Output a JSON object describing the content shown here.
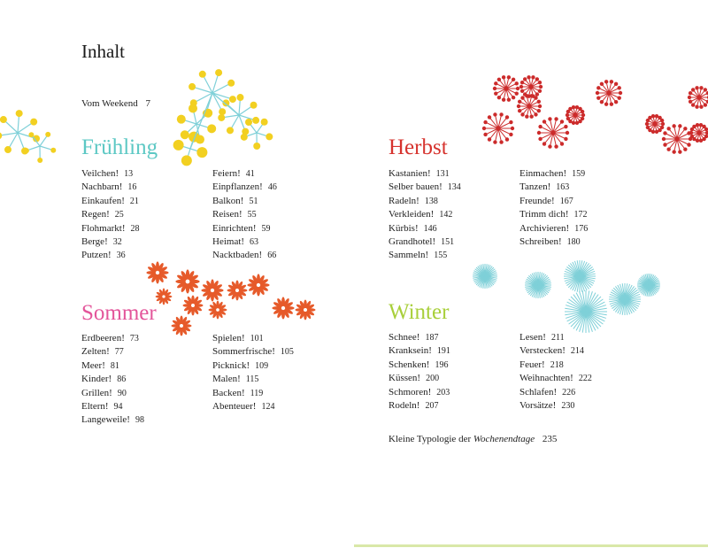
{
  "title": "Inhalt",
  "intro": {
    "label": "Vom Weekend",
    "page": "7"
  },
  "colors": {
    "fruehling": "#5cc8c4",
    "sommer": "#e3559a",
    "herbst": "#d6332e",
    "winter": "#a8cf3a",
    "yellow": "#f2d021",
    "teal": "#7fd0d8",
    "orange": "#e65a2a",
    "red": "#cc2b2b"
  },
  "sections": {
    "fruehling": {
      "heading": "Frühling",
      "col1": [
        {
          "t": "Veilchen!",
          "p": "13"
        },
        {
          "t": "Nachbarn!",
          "p": "16"
        },
        {
          "t": "Einkaufen!",
          "p": "21"
        },
        {
          "t": "Regen!",
          "p": "25"
        },
        {
          "t": "Flohmarkt!",
          "p": "28"
        },
        {
          "t": "Berge!",
          "p": "32"
        },
        {
          "t": "Putzen!",
          "p": "36"
        }
      ],
      "col2": [
        {
          "t": "Feiern!",
          "p": "41"
        },
        {
          "t": "Einpflanzen!",
          "p": "46"
        },
        {
          "t": "Balkon!",
          "p": "51"
        },
        {
          "t": "Reisen!",
          "p": "55"
        },
        {
          "t": "Einrichten!",
          "p": "59"
        },
        {
          "t": "Heimat!",
          "p": "63"
        },
        {
          "t": "Nacktbaden!",
          "p": "66"
        }
      ]
    },
    "sommer": {
      "heading": "Sommer",
      "col1": [
        {
          "t": "Erdbeeren!",
          "p": "73"
        },
        {
          "t": "Zelten!",
          "p": "77"
        },
        {
          "t": "Meer!",
          "p": "81"
        },
        {
          "t": "Kinder!",
          "p": "86"
        },
        {
          "t": "Grillen!",
          "p": "90"
        },
        {
          "t": "Eltern!",
          "p": "94"
        },
        {
          "t": "Langeweile!",
          "p": "98"
        }
      ],
      "col2": [
        {
          "t": "Spielen!",
          "p": "101"
        },
        {
          "t": "Sommerfrische!",
          "p": "105"
        },
        {
          "t": "Picknick!",
          "p": "109"
        },
        {
          "t": "Malen!",
          "p": "115"
        },
        {
          "t": "Backen!",
          "p": "119"
        },
        {
          "t": "Abenteuer!",
          "p": "124"
        }
      ]
    },
    "herbst": {
      "heading": "Herbst",
      "col1": [
        {
          "t": "Kastanien!",
          "p": "131"
        },
        {
          "t": "Selber bauen!",
          "p": "134"
        },
        {
          "t": "Radeln!",
          "p": "138"
        },
        {
          "t": "Verkleiden!",
          "p": "142"
        },
        {
          "t": "Kürbis!",
          "p": "146"
        },
        {
          "t": "Grandhotel!",
          "p": "151"
        },
        {
          "t": "Sammeln!",
          "p": "155"
        }
      ],
      "col2": [
        {
          "t": "Einmachen!",
          "p": "159"
        },
        {
          "t": "Tanzen!",
          "p": "163"
        },
        {
          "t": "Freunde!",
          "p": "167"
        },
        {
          "t": "Trimm dich!",
          "p": "172"
        },
        {
          "t": "Archivieren!",
          "p": "176"
        },
        {
          "t": "Schreiben!",
          "p": "180"
        }
      ]
    },
    "winter": {
      "heading": "Winter",
      "col1": [
        {
          "t": "Schnee!",
          "p": "187"
        },
        {
          "t": "Kranksein!",
          "p": "191"
        },
        {
          "t": "Schenken!",
          "p": "196"
        },
        {
          "t": "Küssen!",
          "p": "200"
        },
        {
          "t": "Schmoren!",
          "p": "203"
        },
        {
          "t": "Rodeln!",
          "p": "207"
        }
      ],
      "col2": [
        {
          "t": "Lesen!",
          "p": "211"
        },
        {
          "t": "Verstecken!",
          "p": "214"
        },
        {
          "t": "Feuer!",
          "p": "218"
        },
        {
          "t": "Weihnachten!",
          "p": "222"
        },
        {
          "t": "Schlafen!",
          "p": "226"
        },
        {
          "t": "Vorsätze!",
          "p": "230"
        }
      ]
    }
  },
  "typology": {
    "prefix": "Kleine Typologie der",
    "italic": "Wochenendtage",
    "page": "235"
  }
}
